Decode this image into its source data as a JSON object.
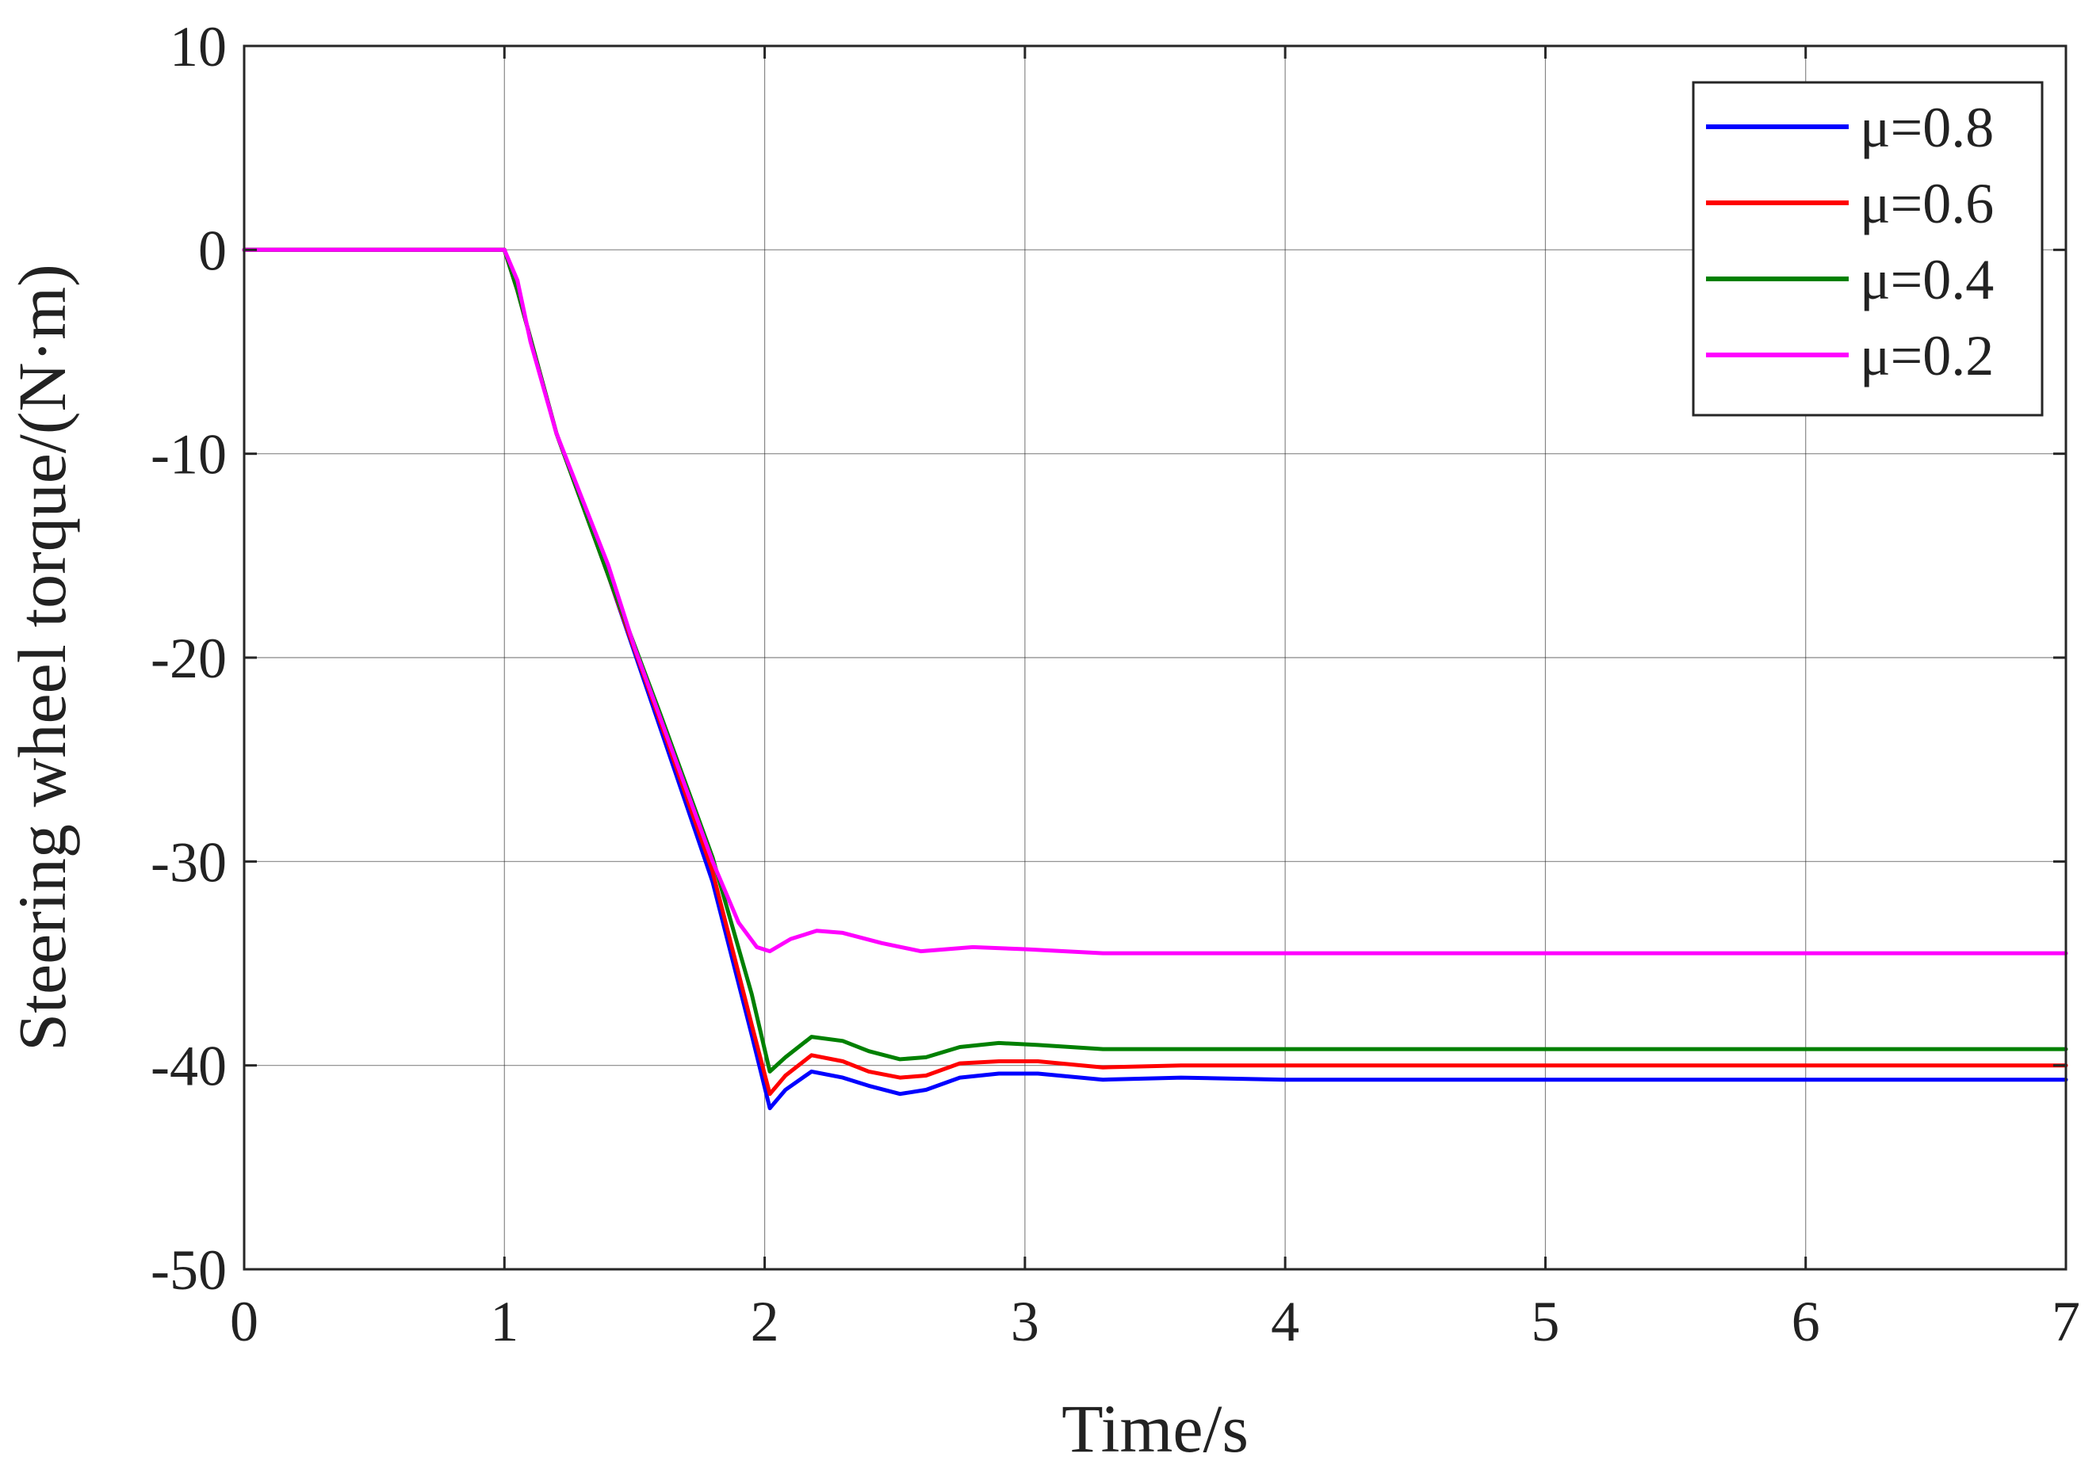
{
  "chart_data": {
    "type": "line",
    "xlabel": "Time/s",
    "ylabel": "Steering wheel torque/(N·m)",
    "xlim": [
      0,
      7
    ],
    "ylim": [
      -50,
      10
    ],
    "xticks": [
      0,
      1,
      2,
      3,
      4,
      5,
      6,
      7
    ],
    "xtick_labels": [
      "0",
      "1",
      "2",
      "3",
      "4",
      "5",
      "6",
      "7"
    ],
    "yticks": [
      10,
      0,
      -10,
      -20,
      -30,
      -40,
      -50
    ],
    "ytick_labels": [
      "10",
      "0",
      "-10",
      "-20",
      "-30",
      "-40",
      "-50"
    ],
    "grid": true,
    "legend_position": "top-right",
    "series": [
      {
        "name": "μ=0.8",
        "color": "#0000ff",
        "points": [
          [
            0,
            0
          ],
          [
            1.0,
            0
          ],
          [
            1.05,
            -2
          ],
          [
            1.2,
            -9
          ],
          [
            1.4,
            -16
          ],
          [
            1.6,
            -23.5
          ],
          [
            1.8,
            -31
          ],
          [
            1.95,
            -38.5
          ],
          [
            2.02,
            -42.1
          ],
          [
            2.08,
            -41.2
          ],
          [
            2.18,
            -40.3
          ],
          [
            2.3,
            -40.6
          ],
          [
            2.4,
            -41.0
          ],
          [
            2.52,
            -41.4
          ],
          [
            2.62,
            -41.2
          ],
          [
            2.75,
            -40.6
          ],
          [
            2.9,
            -40.4
          ],
          [
            3.05,
            -40.4
          ],
          [
            3.3,
            -40.7
          ],
          [
            3.6,
            -40.6
          ],
          [
            4.0,
            -40.7
          ],
          [
            5.0,
            -40.7
          ],
          [
            6.0,
            -40.7
          ],
          [
            7.0,
            -40.7
          ]
        ]
      },
      {
        "name": "μ=0.6",
        "color": "#ff0000",
        "points": [
          [
            0,
            0
          ],
          [
            1.0,
            0
          ],
          [
            1.05,
            -2
          ],
          [
            1.2,
            -9
          ],
          [
            1.4,
            -16
          ],
          [
            1.6,
            -23.2
          ],
          [
            1.8,
            -30.5
          ],
          [
            1.95,
            -38
          ],
          [
            2.02,
            -41.4
          ],
          [
            2.08,
            -40.5
          ],
          [
            2.18,
            -39.5
          ],
          [
            2.3,
            -39.8
          ],
          [
            2.4,
            -40.3
          ],
          [
            2.52,
            -40.6
          ],
          [
            2.62,
            -40.5
          ],
          [
            2.75,
            -39.9
          ],
          [
            2.9,
            -39.8
          ],
          [
            3.05,
            -39.8
          ],
          [
            3.3,
            -40.1
          ],
          [
            3.6,
            -40.0
          ],
          [
            4.0,
            -40.0
          ],
          [
            5.0,
            -40.0
          ],
          [
            6.0,
            -40.0
          ],
          [
            7.0,
            -40.0
          ]
        ]
      },
      {
        "name": "μ=0.4",
        "color": "#008000",
        "points": [
          [
            0,
            0
          ],
          [
            1.0,
            0
          ],
          [
            1.05,
            -2
          ],
          [
            1.2,
            -9
          ],
          [
            1.4,
            -16
          ],
          [
            1.6,
            -22.8
          ],
          [
            1.8,
            -29.8
          ],
          [
            1.95,
            -36.5
          ],
          [
            2.02,
            -40.3
          ],
          [
            2.08,
            -39.6
          ],
          [
            2.18,
            -38.6
          ],
          [
            2.3,
            -38.8
          ],
          [
            2.4,
            -39.3
          ],
          [
            2.52,
            -39.7
          ],
          [
            2.62,
            -39.6
          ],
          [
            2.75,
            -39.1
          ],
          [
            2.9,
            -38.9
          ],
          [
            3.05,
            -39.0
          ],
          [
            3.3,
            -39.2
          ],
          [
            3.6,
            -39.2
          ],
          [
            4.0,
            -39.2
          ],
          [
            5.0,
            -39.2
          ],
          [
            6.0,
            -39.2
          ],
          [
            7.0,
            -39.2
          ]
        ]
      },
      {
        "name": "μ=0.2",
        "color": "#ff00ff",
        "points": [
          [
            0,
            0
          ],
          [
            0.3,
            0
          ],
          [
            1.0,
            0
          ],
          [
            1.05,
            -1.5
          ],
          [
            1.1,
            -4.5
          ],
          [
            1.2,
            -9
          ],
          [
            1.4,
            -15.5
          ],
          [
            1.5,
            -19.5
          ],
          [
            1.6,
            -23
          ],
          [
            1.7,
            -26.5
          ],
          [
            1.8,
            -30
          ],
          [
            1.9,
            -33
          ],
          [
            1.97,
            -34.2
          ],
          [
            2.02,
            -34.4
          ],
          [
            2.1,
            -33.8
          ],
          [
            2.2,
            -33.4
          ],
          [
            2.3,
            -33.5
          ],
          [
            2.45,
            -34.0
          ],
          [
            2.6,
            -34.4
          ],
          [
            2.8,
            -34.2
          ],
          [
            3.0,
            -34.3
          ],
          [
            3.3,
            -34.5
          ],
          [
            4.0,
            -34.5
          ],
          [
            5.0,
            -34.5
          ],
          [
            6.0,
            -34.5
          ],
          [
            7.0,
            -34.5
          ]
        ]
      }
    ]
  }
}
